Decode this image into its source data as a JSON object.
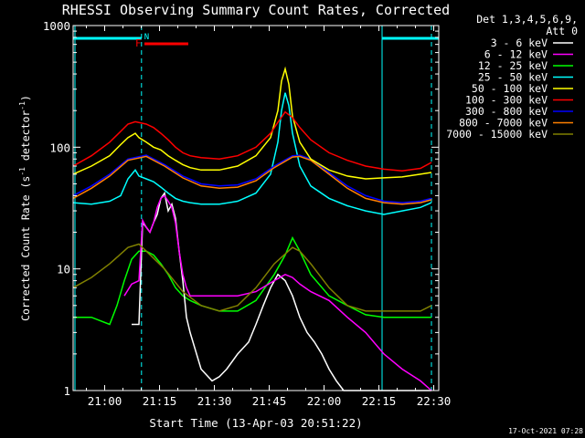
{
  "chart_data": {
    "type": "line",
    "title": "RHESSI Observing Summary Count Rates, Corrected",
    "xlabel": "Start Time (13-Apr-03 20:51:22)",
    "ylabel": "Corrected Count Rate (s⁻¹ detector⁻¹)",
    "ylabel_parts": [
      "Corrected Count Rate (s",
      "-1",
      " detector",
      "-1",
      ")"
    ],
    "yscale": "log",
    "ylim": [
      1,
      1000
    ],
    "xlim_minutes": [
      0,
      100
    ],
    "x_ticks": [
      {
        "m": 8.63,
        "label": "21:00"
      },
      {
        "m": 23.63,
        "label": "21:15"
      },
      {
        "m": 38.63,
        "label": "21:30"
      },
      {
        "m": 53.63,
        "label": "21:45"
      },
      {
        "m": 68.63,
        "label": "22:00"
      },
      {
        "m": 83.63,
        "label": "22:15"
      },
      {
        "m": 98.63,
        "label": "22:30"
      }
    ],
    "y_ticks": [
      {
        "v": 1000,
        "label": "1000"
      },
      {
        "v": 100,
        "label": "100"
      },
      {
        "v": 10,
        "label": "10"
      },
      {
        "v": 1,
        "label": "1"
      }
    ],
    "legend_header": [
      "Det 1,3,4,5,6,9,",
      "Att 0"
    ],
    "legend_position": "top-right, outside plot",
    "timestamp": "17-Oct-2021 07:28",
    "annotations": {
      "flag_N": "N",
      "flag_F": "F",
      "night_color": "#00FFFF",
      "flare_color": "#FF0000",
      "night_intervals": [
        [
          0,
          18.7
        ],
        [
          84.5,
          100
        ]
      ],
      "flare_interval": [
        19.5,
        31.5
      ],
      "dashed_lines_min": [
        18.7,
        98.0
      ],
      "solid_lines_min": [
        0.5,
        84.5
      ]
    },
    "series": [
      {
        "name": "3 - 6 keV",
        "color": "#FFFFFF",
        "x": [
          16,
          18,
          19,
          20,
          21,
          22,
          23,
          24,
          25,
          26,
          27,
          28,
          29,
          30,
          31,
          32,
          35,
          38,
          40,
          42,
          45,
          48,
          50,
          52,
          54,
          56,
          58,
          60,
          62,
          64,
          66,
          68,
          70,
          72,
          74,
          76,
          78,
          80,
          82,
          84,
          86,
          88,
          90,
          92,
          94,
          96,
          98
        ],
        "y": [
          3.5,
          3.5,
          24,
          22,
          20,
          24,
          28,
          38,
          42,
          30,
          34,
          26,
          14,
          8,
          4,
          3,
          1.5,
          1.2,
          1.3,
          1.5,
          2,
          2.5,
          3.5,
          5,
          7,
          9,
          8,
          6,
          4,
          3,
          2.5,
          2,
          1.5,
          1.2,
          1,
          1,
          1,
          1,
          1,
          1,
          1,
          1,
          1,
          1,
          1,
          1,
          1
        ]
      },
      {
        "name": "6 - 12 keV",
        "color": "#FF00FF",
        "x": [
          14,
          16,
          18,
          19,
          20,
          21,
          22,
          23,
          24,
          25,
          26,
          27,
          28,
          29,
          30,
          31,
          32,
          35,
          40,
          45,
          50,
          55,
          58,
          60,
          62,
          65,
          70,
          75,
          80,
          85,
          90,
          95,
          98
        ],
        "y": [
          6,
          7.5,
          8,
          25,
          22,
          20,
          24,
          32,
          38,
          40,
          36,
          32,
          24,
          14,
          9,
          7,
          6,
          6,
          6,
          6,
          6.5,
          8,
          9,
          8.5,
          7.5,
          6.5,
          5.5,
          4,
          3,
          2,
          1.5,
          1.2,
          1
        ]
      },
      {
        "name": "12 - 25 keV",
        "color": "#00FF00",
        "x": [
          0,
          5,
          10,
          12,
          14,
          16,
          18,
          20,
          22,
          24,
          26,
          28,
          30,
          32,
          35,
          40,
          45,
          50,
          55,
          58,
          60,
          62,
          65,
          70,
          75,
          80,
          85,
          90,
          95,
          98
        ],
        "y": [
          4,
          4,
          3.5,
          5,
          8,
          12,
          14,
          14,
          13,
          11,
          9,
          7,
          6,
          5.5,
          5,
          4.5,
          4.5,
          5.5,
          9,
          13,
          18,
          14,
          9,
          6,
          5,
          4.2,
          4,
          4,
          4,
          4
        ]
      },
      {
        "name": "25 - 50 keV",
        "color": "#00FFFF",
        "x": [
          0,
          5,
          10,
          13,
          15,
          17,
          18,
          20,
          22,
          24,
          26,
          28,
          30,
          32,
          35,
          40,
          45,
          50,
          54,
          56,
          57,
          58,
          59,
          60,
          62,
          65,
          70,
          75,
          80,
          85,
          90,
          95,
          98
        ],
        "y": [
          35,
          34,
          36,
          40,
          55,
          65,
          58,
          55,
          52,
          47,
          42,
          38,
          36,
          35,
          34,
          34,
          36,
          42,
          60,
          110,
          200,
          280,
          220,
          130,
          70,
          48,
          38,
          33,
          30,
          28,
          30,
          32,
          35
        ]
      },
      {
        "name": "50 - 100 keV",
        "color": "#FFFF00",
        "x": [
          0,
          5,
          10,
          13,
          15,
          17,
          18,
          20,
          22,
          24,
          26,
          28,
          30,
          32,
          35,
          40,
          45,
          50,
          54,
          56,
          57,
          58,
          59,
          60,
          62,
          65,
          70,
          75,
          80,
          85,
          90,
          95,
          98
        ],
        "y": [
          60,
          70,
          85,
          105,
          120,
          130,
          120,
          110,
          100,
          95,
          85,
          78,
          72,
          68,
          65,
          65,
          70,
          85,
          120,
          200,
          350,
          440,
          330,
          180,
          110,
          80,
          65,
          58,
          55,
          56,
          57,
          60,
          62
        ]
      },
      {
        "name": "100 - 300 keV",
        "color": "#FF0000",
        "x": [
          0,
          5,
          10,
          13,
          15,
          17,
          20,
          22,
          24,
          26,
          28,
          30,
          32,
          35,
          40,
          45,
          50,
          54,
          56,
          58,
          60,
          62,
          65,
          70,
          75,
          80,
          85,
          90,
          95,
          98
        ],
        "y": [
          70,
          85,
          110,
          135,
          155,
          162,
          155,
          145,
          130,
          115,
          100,
          90,
          85,
          82,
          80,
          85,
          100,
          130,
          160,
          195,
          175,
          145,
          115,
          90,
          78,
          70,
          66,
          64,
          67,
          75
        ]
      },
      {
        "name": "300 - 800 keV",
        "color": "#0000FF",
        "x": [
          0,
          5,
          10,
          15,
          20,
          25,
          30,
          35,
          40,
          45,
          50,
          55,
          60,
          62,
          65,
          70,
          75,
          80,
          85,
          90,
          95,
          98
        ],
        "y": [
          40,
          48,
          60,
          80,
          86,
          72,
          58,
          50,
          48,
          49,
          55,
          70,
          85,
          86,
          80,
          62,
          48,
          40,
          36,
          35,
          36,
          38
        ]
      },
      {
        "name": "800 - 7000 keV",
        "color": "#FF8000",
        "x": [
          0,
          5,
          10,
          15,
          20,
          25,
          30,
          35,
          40,
          45,
          50,
          55,
          60,
          62,
          65,
          70,
          75,
          80,
          85,
          90,
          95,
          98
        ],
        "y": [
          38,
          46,
          58,
          78,
          84,
          70,
          56,
          48,
          46,
          47,
          53,
          68,
          83,
          84,
          78,
          60,
          46,
          38,
          35,
          34,
          35,
          37
        ]
      },
      {
        "name": "7000 - 15000 keV",
        "color": "#808000",
        "x": [
          0,
          5,
          10,
          15,
          18,
          20,
          25,
          30,
          35,
          40,
          45,
          50,
          55,
          60,
          62,
          65,
          70,
          75,
          80,
          85,
          90,
          95,
          98
        ],
        "y": [
          7,
          8.5,
          11,
          15,
          16,
          14,
          10,
          6.5,
          5,
          4.5,
          5,
          7,
          11,
          15,
          14,
          11,
          7,
          5,
          4.5,
          4.5,
          4.5,
          4.5,
          5
        ]
      }
    ]
  }
}
